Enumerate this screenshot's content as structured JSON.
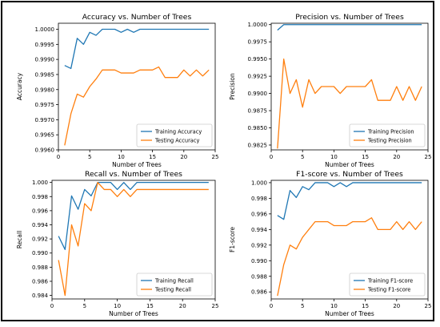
{
  "chart_data": [
    {
      "type": "line",
      "title": "Accuracy vs. Number of Trees",
      "xlabel": "Number of Trees",
      "ylabel": "Accuracy",
      "xlim": [
        0,
        25
      ],
      "ylim": [
        0.996,
        1.0002
      ],
      "xticks": [
        0,
        5,
        10,
        15,
        20,
        25
      ],
      "xtick_labels": [
        "0",
        "5",
        "10",
        "15",
        "20",
        "25"
      ],
      "yticks": [
        0.996,
        0.9965,
        0.997,
        0.9975,
        0.998,
        0.9985,
        0.999,
        0.9995,
        1.0
      ],
      "ytick_labels": [
        "0.9960",
        "0.9965",
        "0.9970",
        "0.9975",
        "0.9980",
        "0.9985",
        "0.9990",
        "0.9995",
        "1.0000"
      ],
      "legend_position": "lower-right",
      "x": [
        1,
        2,
        3,
        4,
        5,
        6,
        7,
        8,
        9,
        10,
        11,
        12,
        13,
        14,
        15,
        16,
        17,
        18,
        19,
        20,
        21,
        22,
        23,
        24
      ],
      "series": [
        {
          "name": "Training Accuracy",
          "color": "#1f77b4",
          "values": [
            0.9988,
            0.9987,
            0.9997,
            0.9995,
            0.9999,
            0.9998,
            1.0,
            1.0,
            1.0,
            0.9999,
            1.0,
            0.9999,
            1.0,
            1.0,
            1.0,
            1.0,
            1.0,
            1.0,
            1.0,
            1.0,
            1.0,
            1.0,
            1.0,
            1.0
          ]
        },
        {
          "name": "Testing Accuracy",
          "color": "#ff7f0e",
          "values": [
            0.99615,
            0.9972,
            0.99785,
            0.99775,
            0.9981,
            0.99835,
            0.99865,
            0.99865,
            0.99865,
            0.99855,
            0.99855,
            0.99855,
            0.99865,
            0.99865,
            0.99865,
            0.99875,
            0.9984,
            0.9984,
            0.9984,
            0.99865,
            0.99845,
            0.99865,
            0.99845,
            0.99865
          ]
        }
      ]
    },
    {
      "type": "line",
      "title": "Precision vs. Number of Trees",
      "xlabel": "Number of Trees",
      "ylabel": "Precision",
      "xlim": [
        0,
        25
      ],
      "ylim": [
        0.9818,
        1.0002
      ],
      "xticks": [
        0,
        5,
        10,
        15,
        20,
        25
      ],
      "xtick_labels": [
        "0",
        "5",
        "10",
        "15",
        "20",
        "25"
      ],
      "yticks": [
        0.9825,
        0.985,
        0.9875,
        0.99,
        0.9925,
        0.995,
        0.9975,
        1.0
      ],
      "ytick_labels": [
        "0.9825",
        "0.9850",
        "0.9875",
        "0.9900",
        "0.9925",
        "0.9950",
        "0.9975",
        "1.0000"
      ],
      "legend_position": "lower-right",
      "x": [
        1,
        2,
        3,
        4,
        5,
        6,
        7,
        8,
        9,
        10,
        11,
        12,
        13,
        14,
        15,
        16,
        17,
        18,
        19,
        20,
        21,
        22,
        23,
        24
      ],
      "series": [
        {
          "name": "Training Precision",
          "color": "#1f77b4",
          "values": [
            0.9992,
            1.0,
            1.0,
            1.0,
            1.0,
            1.0,
            1.0,
            1.0,
            1.0,
            1.0,
            1.0,
            1.0,
            1.0,
            1.0,
            1.0,
            1.0,
            1.0,
            1.0,
            1.0,
            1.0,
            1.0,
            1.0,
            1.0,
            1.0
          ]
        },
        {
          "name": "Testing Precision",
          "color": "#ff7f0e",
          "values": [
            0.982,
            0.995,
            0.99,
            0.992,
            0.988,
            0.992,
            0.99,
            0.991,
            0.991,
            0.991,
            0.99,
            0.991,
            0.991,
            0.991,
            0.991,
            0.992,
            0.989,
            0.989,
            0.989,
            0.991,
            0.989,
            0.991,
            0.989,
            0.991
          ]
        }
      ]
    },
    {
      "type": "line",
      "title": "Recall vs. Number of Trees",
      "xlabel": "Number of Trees",
      "ylabel": "Recall",
      "xlim": [
        0,
        25
      ],
      "ylim": [
        0.9835,
        1.0003
      ],
      "xticks": [
        0,
        5,
        10,
        15,
        20,
        25
      ],
      "xtick_labels": [
        "0",
        "5",
        "10",
        "15",
        "20",
        "25"
      ],
      "yticks": [
        0.984,
        0.986,
        0.988,
        0.99,
        0.992,
        0.994,
        0.996,
        0.998,
        1.0
      ],
      "ytick_labels": [
        "0.984",
        "0.986",
        "0.988",
        "0.990",
        "0.992",
        "0.994",
        "0.996",
        "0.998",
        "1.000"
      ],
      "legend_position": "lower-right",
      "x": [
        1,
        2,
        3,
        4,
        5,
        6,
        7,
        8,
        9,
        10,
        11,
        12,
        13,
        14,
        15,
        16,
        17,
        18,
        19,
        20,
        21,
        22,
        23,
        24
      ],
      "series": [
        {
          "name": "Training Recall",
          "color": "#1f77b4",
          "values": [
            0.9924,
            0.9905,
            0.9981,
            0.9962,
            0.999,
            0.9981,
            1.0,
            1.0,
            1.0,
            0.999,
            1.0,
            0.999,
            1.0,
            1.0,
            1.0,
            1.0,
            1.0,
            1.0,
            1.0,
            1.0,
            1.0,
            1.0,
            1.0,
            1.0
          ]
        },
        {
          "name": "Testing Recall",
          "color": "#ff7f0e",
          "values": [
            0.989,
            0.984,
            0.994,
            0.991,
            0.997,
            0.996,
            1.0,
            0.999,
            0.999,
            0.998,
            0.999,
            0.998,
            0.999,
            0.999,
            0.999,
            0.999,
            0.999,
            0.999,
            0.999,
            0.999,
            0.999,
            0.999,
            0.999,
            0.999
          ]
        }
      ]
    },
    {
      "type": "line",
      "title": "F1-score vs. Number of Trees",
      "xlabel": "Number of Trees",
      "ylabel": "F1-score",
      "xlim": [
        0,
        25
      ],
      "ylim": [
        0.9851,
        1.0003
      ],
      "xticks": [
        0,
        5,
        10,
        15,
        20,
        25
      ],
      "xtick_labels": [
        "0",
        "5",
        "10",
        "15",
        "20",
        "25"
      ],
      "yticks": [
        0.986,
        0.988,
        0.99,
        0.992,
        0.994,
        0.996,
        0.998,
        1.0
      ],
      "ytick_labels": [
        "0.986",
        "0.988",
        "0.990",
        "0.992",
        "0.994",
        "0.996",
        "0.998",
        "1.000"
      ],
      "legend_position": "lower-right",
      "x": [
        1,
        2,
        3,
        4,
        5,
        6,
        7,
        8,
        9,
        10,
        11,
        12,
        13,
        14,
        15,
        16,
        17,
        18,
        19,
        20,
        21,
        22,
        23,
        24
      ],
      "series": [
        {
          "name": "Training F1-score",
          "color": "#1f77b4",
          "values": [
            0.9958,
            0.9953,
            0.999,
            0.9981,
            0.9995,
            0.9991,
            1.0,
            1.0,
            1.0,
            0.9995,
            1.0,
            0.9995,
            1.0,
            1.0,
            1.0,
            1.0,
            1.0,
            1.0,
            1.0,
            1.0,
            1.0,
            1.0,
            1.0,
            1.0
          ]
        },
        {
          "name": "Testing F1-score",
          "color": "#ff7f0e",
          "values": [
            0.9855,
            0.9895,
            0.992,
            0.9915,
            0.993,
            0.994,
            0.995,
            0.995,
            0.995,
            0.9945,
            0.9945,
            0.9945,
            0.995,
            0.995,
            0.995,
            0.9955,
            0.994,
            0.994,
            0.994,
            0.995,
            0.994,
            0.995,
            0.994,
            0.995
          ]
        }
      ]
    }
  ]
}
